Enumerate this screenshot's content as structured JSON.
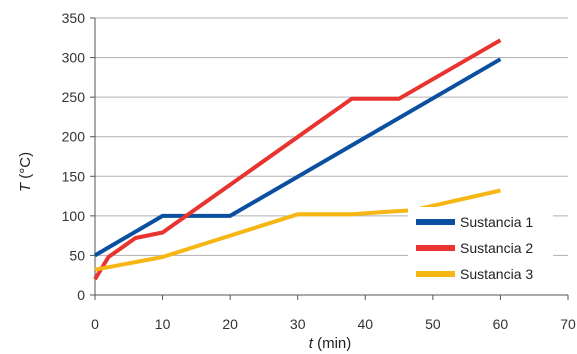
{
  "chart_data": {
    "type": "line",
    "xlabel_italic": "t",
    "xlabel_unit": " (min)",
    "ylabel_italic": "T",
    "ylabel_unit": " (°C)",
    "xlim": [
      0,
      70
    ],
    "ylim": [
      0,
      350
    ],
    "x_ticks": [
      0,
      10,
      20,
      30,
      40,
      50,
      60,
      70
    ],
    "y_ticks": [
      0,
      50,
      100,
      150,
      200,
      250,
      300,
      350
    ],
    "grid": "horizontal",
    "legend_position": "right",
    "series": [
      {
        "name": "Sustancia 1",
        "color": "#0a4fa0",
        "points": [
          [
            0,
            50
          ],
          [
            10,
            100
          ],
          [
            20,
            100
          ],
          [
            60,
            298
          ]
        ]
      },
      {
        "name": "Sustancia 2",
        "color": "#e8332e",
        "points": [
          [
            0,
            20
          ],
          [
            2,
            48
          ],
          [
            6,
            72
          ],
          [
            10,
            79
          ],
          [
            38,
            248
          ],
          [
            45,
            248
          ],
          [
            60,
            322
          ]
        ]
      },
      {
        "name": "Sustancia 3",
        "color": "#f6b614",
        "points": [
          [
            0,
            32
          ],
          [
            10,
            48
          ],
          [
            30,
            102
          ],
          [
            38,
            102
          ],
          [
            43,
            105
          ],
          [
            47,
            107
          ],
          [
            60,
            132
          ]
        ]
      }
    ]
  }
}
